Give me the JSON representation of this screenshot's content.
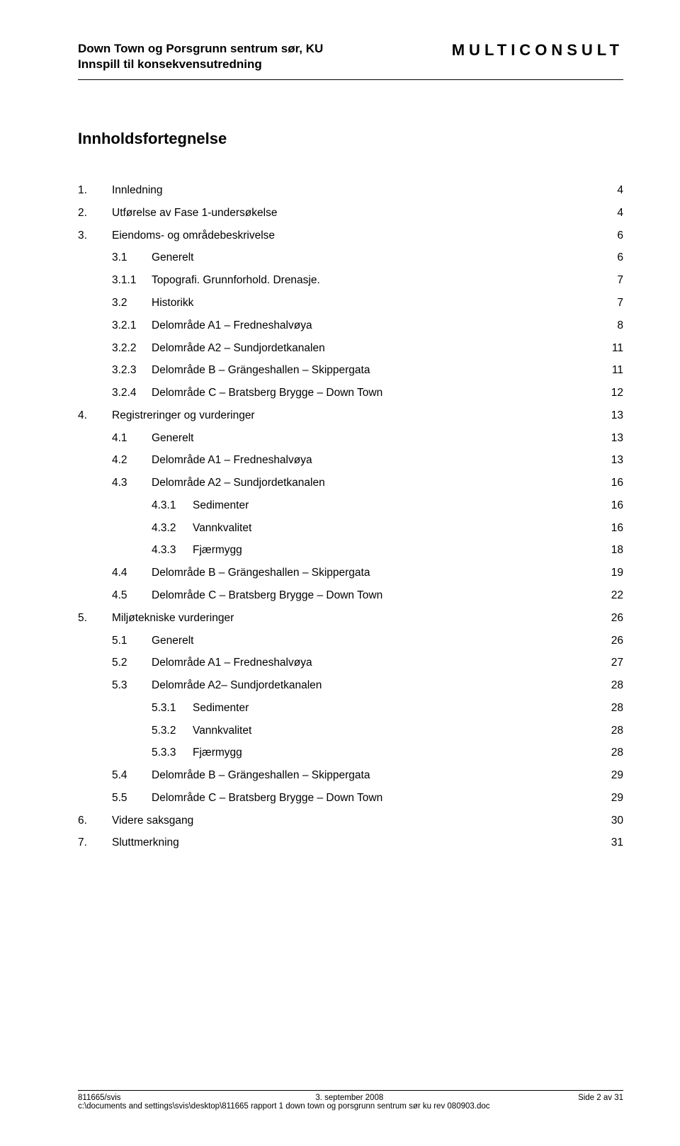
{
  "header": {
    "title_line1": "Down Town og Porsgrunn sentrum sør, KU",
    "title_line2": "Innspill til konsekvensutredning",
    "brand": "MULTICONSULT"
  },
  "toc_title": "Innholdsfortegnelse",
  "toc": [
    {
      "lvl": 1,
      "num": "1.",
      "label": "Innledning",
      "page": "4"
    },
    {
      "lvl": 1,
      "num": "2.",
      "label": "Utførelse av Fase 1-undersøkelse",
      "page": "4"
    },
    {
      "lvl": 1,
      "num": "3.",
      "label": "Eiendoms- og områdebeskrivelse",
      "page": "6"
    },
    {
      "lvl": 2,
      "num": "3.1",
      "label": "Generelt",
      "page": "6"
    },
    {
      "lvl": 2,
      "num": "3.1.1",
      "label": "Topografi. Grunnforhold. Drenasje.",
      "page": "7"
    },
    {
      "lvl": 2,
      "num": "3.2",
      "label": "Historikk",
      "page": "7"
    },
    {
      "lvl": 2,
      "num": "3.2.1",
      "label": "Delområde A1 – Fredneshalvøya",
      "page": "8"
    },
    {
      "lvl": 2,
      "num": "3.2.2",
      "label": "Delområde A2 – Sundjordetkanalen",
      "page": "11"
    },
    {
      "lvl": 2,
      "num": "3.2.3",
      "label": "Delområde B – Grängeshallen – Skippergata",
      "page": "11"
    },
    {
      "lvl": 2,
      "num": "3.2.4",
      "label": "Delområde C – Bratsberg Brygge – Down Town",
      "page": "12"
    },
    {
      "lvl": 1,
      "num": "4.",
      "label": "Registreringer og vurderinger",
      "page": "13"
    },
    {
      "lvl": 2,
      "num": "4.1",
      "label": "Generelt",
      "page": "13"
    },
    {
      "lvl": 2,
      "num": "4.2",
      "label": "Delområde A1 – Fredneshalvøya",
      "page": "13"
    },
    {
      "lvl": 2,
      "num": "4.3",
      "label": "Delområde A2 – Sundjordetkanalen",
      "page": "16"
    },
    {
      "lvl": 3,
      "num": "4.3.1",
      "label": "Sedimenter",
      "page": "16"
    },
    {
      "lvl": 3,
      "num": "4.3.2",
      "label": "Vannkvalitet",
      "page": "16"
    },
    {
      "lvl": 3,
      "num": "4.3.3",
      "label": "Fjærmygg",
      "page": "18"
    },
    {
      "lvl": 2,
      "num": "4.4",
      "label": "Delområde B – Grängeshallen – Skippergata",
      "page": "19"
    },
    {
      "lvl": 2,
      "num": "4.5",
      "label": "Delområde C – Bratsberg Brygge – Down Town",
      "page": "22"
    },
    {
      "lvl": 1,
      "num": "5.",
      "label": "Miljøtekniske vurderinger",
      "page": "26"
    },
    {
      "lvl": 2,
      "num": "5.1",
      "label": "Generelt",
      "page": "26"
    },
    {
      "lvl": 2,
      "num": "5.2",
      "label": "Delområde A1 – Fredneshalvøya",
      "page": "27"
    },
    {
      "lvl": 2,
      "num": "5.3",
      "label": "Delområde A2– Sundjordetkanalen",
      "page": "28"
    },
    {
      "lvl": 3,
      "num": "5.3.1",
      "label": "Sedimenter",
      "page": "28"
    },
    {
      "lvl": 3,
      "num": "5.3.2",
      "label": "Vannkvalitet",
      "page": "28"
    },
    {
      "lvl": 3,
      "num": "5.3.3",
      "label": "Fjærmygg",
      "page": "28"
    },
    {
      "lvl": 2,
      "num": "5.4",
      "label": "Delområde B – Grängeshallen – Skippergata",
      "page": "29"
    },
    {
      "lvl": 2,
      "num": "5.5",
      "label": "Delområde C – Bratsberg Brygge – Down Town",
      "page": "29"
    },
    {
      "lvl": 1,
      "num": "6.",
      "label": "Videre saksgang",
      "page": "30"
    },
    {
      "lvl": 1,
      "num": "7.",
      "label": "Sluttmerkning",
      "page": "31"
    }
  ],
  "footer": {
    "left": "811665/svis",
    "center": "3. september 2008",
    "right": "Side 2 av 31",
    "path": "c:\\documents and settings\\svis\\desktop\\811665 rapport 1 down town og porsgrunn sentrum sør ku rev 080903.doc"
  }
}
